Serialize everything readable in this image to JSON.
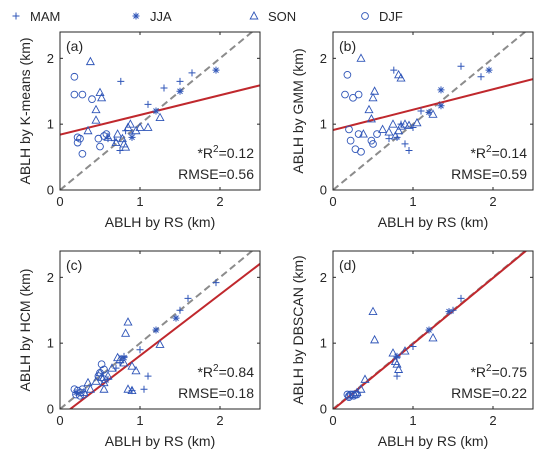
{
  "legend": {
    "entries": [
      {
        "label": "MAM",
        "marker": "plus"
      },
      {
        "label": "JJA",
        "marker": "asterisk"
      },
      {
        "label": "SON",
        "marker": "triangle"
      },
      {
        "label": "DJF",
        "marker": "circle"
      }
    ],
    "placement": "top"
  },
  "colors": {
    "marker": "#2f55b8",
    "fit_line": "#c0282d",
    "one_to_one": "#8c8c8c",
    "axis": "#262626"
  },
  "chart_data": [
    {
      "type": "scatter",
      "panel_label": "(a)",
      "xlabel": "ABLH by RS (km)",
      "ylabel": "ABLH by K-means (km)",
      "xlim": [
        0,
        2.5
      ],
      "ylim": [
        0,
        2.4
      ],
      "xticks": [
        0,
        1,
        2
      ],
      "yticks": [
        0,
        1,
        2
      ],
      "r2_prefix": "*R",
      "r2_sup": "2",
      "r2_value": "=0.12",
      "rmse": "RMSE=0.56",
      "fit_line": {
        "intercept": 0.84,
        "slope": 0.3
      },
      "one_to_one": true,
      "series": [
        {
          "name": "MAM",
          "marker": "plus",
          "points": [
            [
              0.76,
              1.65
            ],
            [
              0.68,
              0.75
            ],
            [
              0.82,
              0.9
            ],
            [
              0.9,
              0.85
            ],
            [
              1.1,
              1.3
            ],
            [
              1.3,
              1.55
            ],
            [
              1.5,
              1.65
            ],
            [
              1.65,
              1.78
            ],
            [
              1.2,
              1.2
            ],
            [
              0.6,
              0.78
            ],
            [
              0.75,
              0.6
            ]
          ]
        },
        {
          "name": "JJA",
          "marker": "asterisk",
          "points": [
            [
              1.5,
              1.5
            ],
            [
              1.95,
              1.82
            ],
            [
              0.9,
              0.8
            ],
            [
              1.2,
              1.2
            ]
          ]
        },
        {
          "name": "SON",
          "marker": "triangle",
          "points": [
            [
              0.38,
              1.95
            ],
            [
              0.5,
              1.48
            ],
            [
              0.52,
              1.4
            ],
            [
              0.45,
              1.22
            ],
            [
              0.45,
              1.06
            ],
            [
              0.6,
              0.8
            ],
            [
              0.7,
              0.72
            ],
            [
              0.78,
              0.78
            ],
            [
              0.85,
              0.95
            ],
            [
              0.88,
              1.0
            ],
            [
              0.95,
              0.9
            ],
            [
              1.0,
              0.95
            ],
            [
              1.1,
              0.95
            ],
            [
              1.25,
              1.1
            ],
            [
              0.35,
              0.9
            ],
            [
              0.72,
              0.85
            ],
            [
              0.82,
              0.65
            ],
            [
              0.8,
              0.7
            ]
          ]
        },
        {
          "name": "DJF",
          "marker": "circle",
          "points": [
            [
              0.18,
              1.72
            ],
            [
              0.18,
              1.45
            ],
            [
              0.28,
              1.45
            ],
            [
              0.22,
              0.8
            ],
            [
              0.25,
              0.78
            ],
            [
              0.22,
              0.72
            ],
            [
              0.28,
              0.55
            ],
            [
              0.48,
              0.78
            ],
            [
              0.5,
              0.66
            ],
            [
              0.55,
              0.82
            ],
            [
              0.58,
              0.85
            ],
            [
              0.4,
              1.38
            ]
          ]
        }
      ]
    },
    {
      "type": "scatter",
      "panel_label": "(b)",
      "xlabel": "ABLH by RS (km)",
      "ylabel": "ABLH by GMM (km)",
      "xlim": [
        0,
        2.5
      ],
      "ylim": [
        0,
        2.4
      ],
      "xticks": [
        0,
        1,
        2
      ],
      "yticks": [
        0,
        1,
        2
      ],
      "r2_prefix": "*R",
      "r2_sup": "2",
      "r2_value": "=0.14",
      "rmse": "RMSE=0.59",
      "fit_line": {
        "intercept": 0.91,
        "slope": 0.31
      },
      "one_to_one": true,
      "series": [
        {
          "name": "MAM",
          "marker": "plus",
          "points": [
            [
              0.76,
              1.82
            ],
            [
              1.6,
              1.88
            ],
            [
              1.85,
              1.72
            ],
            [
              0.8,
              0.8
            ],
            [
              1.1,
              1.2
            ],
            [
              0.9,
              0.7
            ],
            [
              0.85,
              1.0
            ],
            [
              0.95,
              0.6
            ],
            [
              1.0,
              0.95
            ],
            [
              0.7,
              0.78
            ]
          ]
        },
        {
          "name": "JJA",
          "marker": "asterisk",
          "points": [
            [
              1.95,
              1.82
            ],
            [
              1.35,
              1.52
            ],
            [
              1.35,
              1.28
            ],
            [
              1.2,
              1.18
            ]
          ]
        },
        {
          "name": "SON",
          "marker": "triangle",
          "points": [
            [
              0.35,
              2.0
            ],
            [
              0.52,
              1.5
            ],
            [
              0.5,
              1.4
            ],
            [
              0.45,
              1.22
            ],
            [
              0.48,
              1.08
            ],
            [
              0.62,
              0.92
            ],
            [
              0.7,
              0.88
            ],
            [
              0.78,
              0.82
            ],
            [
              0.82,
              0.9
            ],
            [
              0.85,
              0.97
            ],
            [
              0.9,
              1.0
            ],
            [
              0.95,
              0.98
            ],
            [
              1.05,
              1.02
            ],
            [
              1.25,
              1.15
            ],
            [
              0.82,
              1.75
            ],
            [
              0.85,
              1.7
            ],
            [
              0.38,
              0.85
            ],
            [
              0.75,
              1.0
            ]
          ]
        },
        {
          "name": "DJF",
          "marker": "circle",
          "points": [
            [
              0.18,
              1.75
            ],
            [
              0.15,
              1.45
            ],
            [
              0.25,
              1.4
            ],
            [
              0.32,
              1.45
            ],
            [
              0.2,
              0.92
            ],
            [
              0.22,
              0.75
            ],
            [
              0.28,
              0.62
            ],
            [
              0.35,
              0.58
            ],
            [
              0.48,
              0.75
            ],
            [
              0.5,
              0.7
            ],
            [
              0.55,
              0.85
            ],
            [
              0.32,
              0.85
            ]
          ]
        }
      ]
    },
    {
      "type": "scatter",
      "panel_label": "(c)",
      "xlabel": "ABLH by RS (km)",
      "ylabel": "ABLH by HCM (km)",
      "xlim": [
        0,
        2.5
      ],
      "ylim": [
        0,
        2.4
      ],
      "xticks": [
        0,
        1,
        2
      ],
      "yticks": [
        0,
        1,
        2
      ],
      "r2_prefix": "*R",
      "r2_sup": "2",
      "r2_value": "=0.84",
      "rmse": "RMSE=0.18",
      "fit_line": {
        "intercept": -0.12,
        "slope": 0.93
      },
      "one_to_one": true,
      "series": [
        {
          "name": "MAM",
          "marker": "plus",
          "points": [
            [
              1.1,
              0.5
            ],
            [
              1.05,
              0.3
            ],
            [
              0.7,
              0.62
            ],
            [
              0.75,
              0.7
            ],
            [
              0.8,
              0.8
            ],
            [
              1.0,
              0.9
            ],
            [
              1.2,
              1.2
            ],
            [
              1.5,
              1.5
            ],
            [
              1.6,
              1.68
            ],
            [
              1.95,
              1.92
            ],
            [
              0.6,
              0.45
            ],
            [
              0.9,
              0.28
            ]
          ]
        },
        {
          "name": "JJA",
          "marker": "asterisk",
          "points": [
            [
              1.45,
              1.38
            ],
            [
              1.2,
              1.2
            ],
            [
              0.8,
              0.78
            ],
            [
              0.2,
              0.25
            ]
          ]
        },
        {
          "name": "SON",
          "marker": "triangle",
          "points": [
            [
              0.85,
              1.32
            ],
            [
              0.82,
              1.15
            ],
            [
              0.75,
              0.75
            ],
            [
              0.8,
              0.7
            ],
            [
              0.9,
              0.65
            ],
            [
              0.95,
              0.58
            ],
            [
              0.85,
              0.3
            ],
            [
              0.9,
              0.28
            ],
            [
              0.5,
              0.55
            ],
            [
              0.52,
              0.48
            ],
            [
              0.55,
              0.4
            ],
            [
              0.35,
              0.4
            ],
            [
              0.38,
              0.3
            ],
            [
              0.45,
              0.42
            ],
            [
              0.72,
              0.78
            ],
            [
              0.65,
              0.62
            ],
            [
              0.6,
              0.5
            ],
            [
              0.3,
              0.25
            ],
            [
              1.25,
              0.98
            ],
            [
              0.55,
              0.3
            ]
          ]
        },
        {
          "name": "DJF",
          "marker": "circle",
          "points": [
            [
              0.52,
              0.68
            ],
            [
              0.55,
              0.6
            ],
            [
              0.5,
              0.55
            ],
            [
              0.48,
              0.5
            ],
            [
              0.18,
              0.3
            ],
            [
              0.22,
              0.28
            ],
            [
              0.28,
              0.3
            ],
            [
              0.2,
              0.22
            ],
            [
              0.25,
              0.2
            ],
            [
              0.3,
              0.22
            ],
            [
              0.55,
              0.45
            ],
            [
              0.26,
              0.25
            ]
          ]
        }
      ]
    },
    {
      "type": "scatter",
      "panel_label": "(d)",
      "xlabel": "ABLH by RS (km)",
      "ylabel": "ABLH by DBSCAN (km)",
      "xlim": [
        0,
        2.5
      ],
      "ylim": [
        0,
        2.4
      ],
      "xticks": [
        0,
        1,
        2
      ],
      "yticks": [
        0,
        1,
        2
      ],
      "r2_prefix": "*R",
      "r2_sup": "2",
      "r2_value": "=0.75",
      "rmse": "RMSE=0.22",
      "fit_line": {
        "intercept": -0.01,
        "slope": 1.0
      },
      "one_to_one": true,
      "series": [
        {
          "name": "MAM",
          "marker": "plus",
          "points": [
            [
              1.6,
              1.68
            ],
            [
              1.5,
              1.5
            ],
            [
              0.8,
              0.5
            ],
            [
              1.0,
              0.95
            ],
            [
              0.8,
              0.78
            ]
          ]
        },
        {
          "name": "JJA",
          "marker": "asterisk",
          "points": [
            [
              1.45,
              1.48
            ],
            [
              1.2,
              1.2
            ],
            [
              0.8,
              0.8
            ]
          ]
        },
        {
          "name": "SON",
          "marker": "triangle",
          "points": [
            [
              0.5,
              1.48
            ],
            [
              0.52,
              1.05
            ],
            [
              0.4,
              0.45
            ],
            [
              0.75,
              0.85
            ],
            [
              0.78,
              0.72
            ],
            [
              0.8,
              0.68
            ],
            [
              0.82,
              0.6
            ],
            [
              1.25,
              1.08
            ],
            [
              0.9,
              0.88
            ],
            [
              0.35,
              0.3
            ],
            [
              0.3,
              0.25
            ]
          ]
        },
        {
          "name": "DJF",
          "marker": "circle",
          "points": [
            [
              0.18,
              0.22
            ],
            [
              0.2,
              0.2
            ],
            [
              0.22,
              0.22
            ],
            [
              0.25,
              0.22
            ],
            [
              0.28,
              0.22
            ],
            [
              0.3,
              0.22
            ],
            [
              0.26,
              0.2
            ],
            [
              0.2,
              0.18
            ]
          ]
        }
      ]
    }
  ]
}
